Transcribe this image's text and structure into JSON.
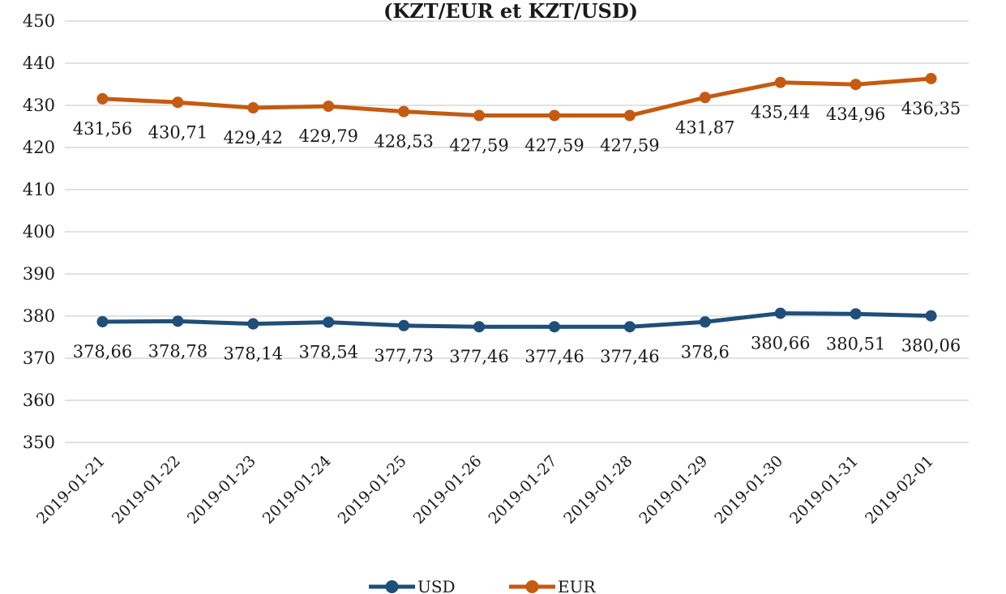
{
  "chart_data": {
    "type": "line",
    "title": "(KZT/EUR et KZT/USD)",
    "xlabel": "",
    "ylabel": "",
    "ylim": [
      350,
      450
    ],
    "yticks": [
      350,
      360,
      370,
      380,
      390,
      400,
      410,
      420,
      430,
      440,
      450
    ],
    "grid": true,
    "legend_position": "bottom",
    "categories": [
      "2019-01-21",
      "2019-01-22",
      "2019-01-23",
      "2019-01-24",
      "2019-01-25",
      "2019-01-26",
      "2019-01-27",
      "2019-01-28",
      "2019-01-29",
      "2019-01-30",
      "2019-01-31",
      "2019-02-01"
    ],
    "series": [
      {
        "name": "USD",
        "color": "#1f4e79",
        "values": [
          378.66,
          378.78,
          378.14,
          378.54,
          377.73,
          377.46,
          377.46,
          377.46,
          378.6,
          380.66,
          380.51,
          380.06
        ],
        "labels": [
          "378,66",
          "378,78",
          "378,14",
          "378,54",
          "377,73",
          "377,46",
          "377,46",
          "377,46",
          "378,6",
          "380,66",
          "380,51",
          "380,06"
        ]
      },
      {
        "name": "EUR",
        "color": "#c55a11",
        "values": [
          431.56,
          430.71,
          429.42,
          429.79,
          428.53,
          427.59,
          427.59,
          427.59,
          431.87,
          435.44,
          434.96,
          436.35
        ],
        "labels": [
          "431,56",
          "430,71",
          "429,42",
          "429,79",
          "428,53",
          "427,59",
          "427,59",
          "427,59",
          "431,87",
          "435,44",
          "434,96",
          "436,35"
        ]
      }
    ]
  }
}
